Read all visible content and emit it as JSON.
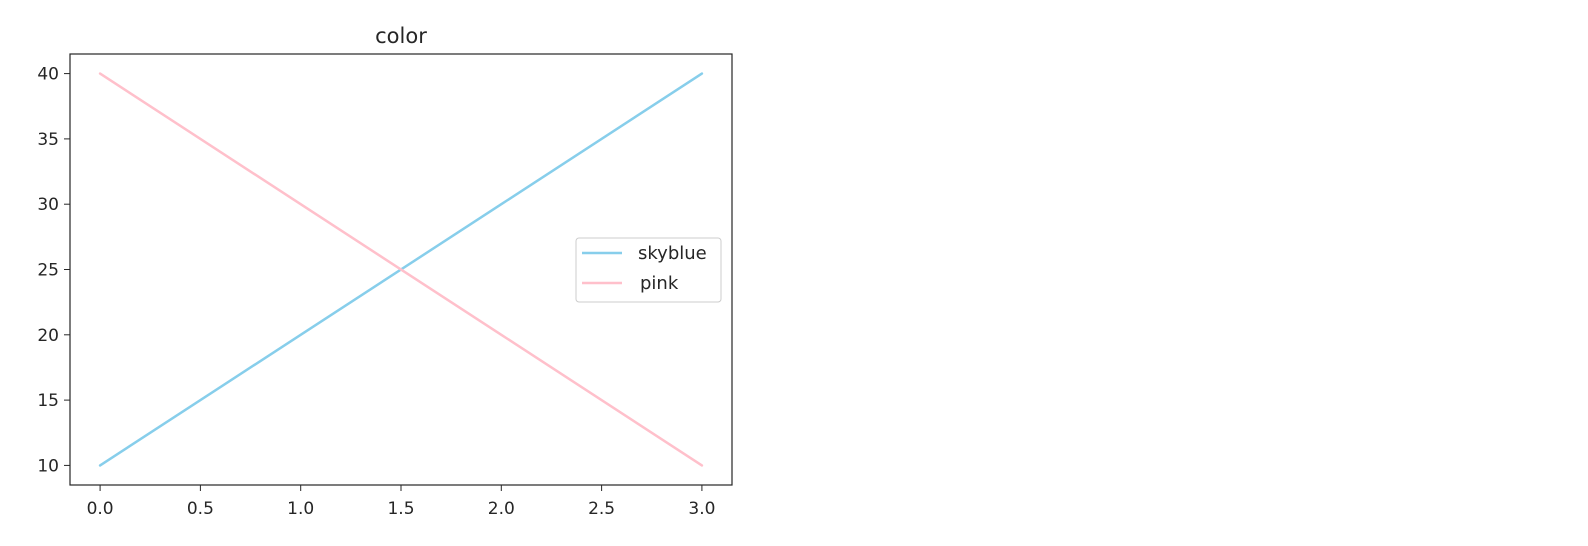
{
  "chart_data": {
    "type": "line",
    "title": "color",
    "xlabel": "",
    "ylabel": "",
    "xlim": [
      -0.15,
      3.15
    ],
    "ylim": [
      8.5,
      41.5
    ],
    "xticks": [
      0.0,
      0.5,
      1.0,
      1.5,
      2.0,
      2.5,
      3.0
    ],
    "xtick_labels": [
      "0.0",
      "0.5",
      "1.0",
      "1.5",
      "2.0",
      "2.5",
      "3.0"
    ],
    "yticks": [
      10,
      15,
      20,
      25,
      30,
      35,
      40
    ],
    "ytick_labels": [
      "10",
      "15",
      "20",
      "25",
      "30",
      "35",
      "40"
    ],
    "grid": false,
    "legend_placement": "center-right",
    "series": [
      {
        "name": "skyblue",
        "color": "#87ceeb",
        "x": [
          0,
          1,
          2,
          3
        ],
        "y": [
          10,
          20,
          30,
          40
        ]
      },
      {
        "name": "pink",
        "color": "#ffc0cb",
        "x": [
          0,
          1,
          2,
          3
        ],
        "y": [
          40,
          30,
          20,
          10
        ]
      }
    ]
  }
}
